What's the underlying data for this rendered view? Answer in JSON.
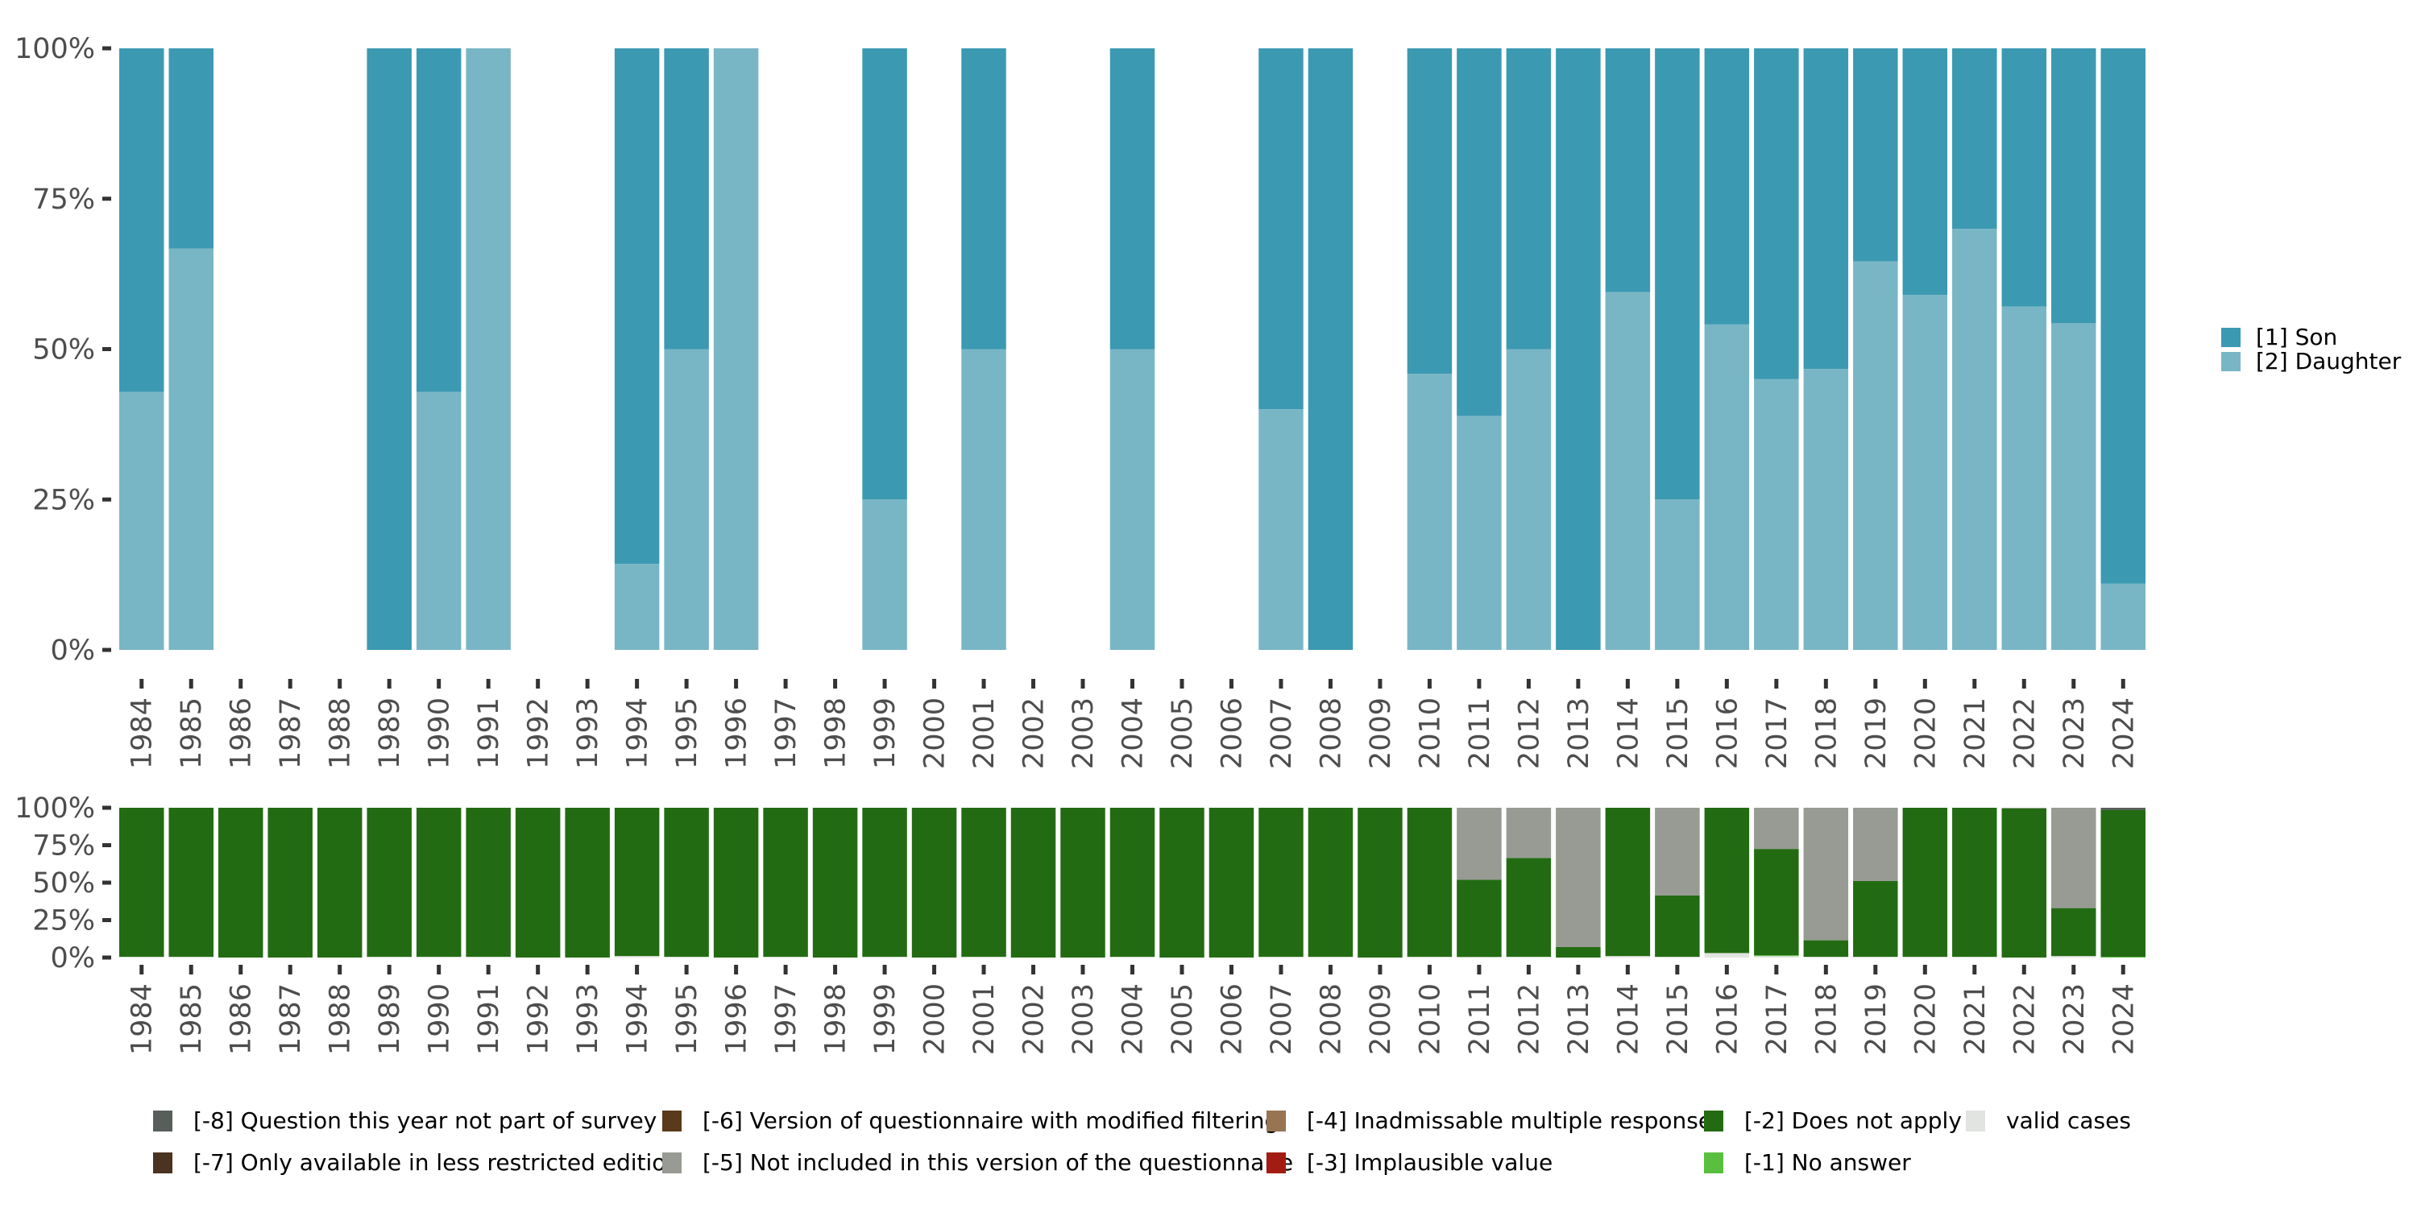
{
  "chart_data": [
    {
      "type": "bar",
      "stacked": true,
      "normalized": true,
      "title": "",
      "xlabel": "",
      "ylabel": "",
      "ylim": [
        0,
        100
      ],
      "yticks": [
        "0%",
        "25%",
        "50%",
        "75%",
        "100%"
      ],
      "categories": [
        "1984",
        "1985",
        "1986",
        "1987",
        "1988",
        "1989",
        "1990",
        "1991",
        "1992",
        "1993",
        "1994",
        "1995",
        "1996",
        "1997",
        "1998",
        "1999",
        "2000",
        "2001",
        "2002",
        "2003",
        "2004",
        "2005",
        "2006",
        "2007",
        "2008",
        "2009",
        "2010",
        "2011",
        "2012",
        "2013",
        "2014",
        "2015",
        "2016",
        "2017",
        "2018",
        "2019",
        "2020",
        "2021",
        "2022",
        "2023",
        "2024"
      ],
      "legend_position": "right",
      "series": [
        {
          "name": "[2] Daughter",
          "color": "#79b6c5",
          "values": [
            42.9,
            66.7,
            null,
            null,
            null,
            0,
            42.9,
            100,
            null,
            null,
            14.3,
            50,
            100,
            null,
            null,
            25,
            null,
            50,
            null,
            null,
            50,
            null,
            null,
            40,
            0,
            null,
            45.9,
            38.9,
            50,
            0,
            59.5,
            25,
            54.1,
            45,
            46.7,
            64.6,
            59,
            70,
            57.1,
            54.3,
            11
          ]
        },
        {
          "name": "[1] Son",
          "color": "#3c99b2",
          "values": [
            57.1,
            33.3,
            null,
            null,
            null,
            100,
            57.1,
            0,
            null,
            null,
            85.7,
            50,
            0,
            null,
            null,
            75,
            null,
            50,
            null,
            null,
            50,
            null,
            null,
            60,
            100,
            null,
            54.1,
            61.1,
            50,
            100,
            40.5,
            75,
            45.9,
            55,
            53.3,
            35.4,
            41,
            30,
            42.9,
            45.7,
            89
          ]
        }
      ]
    },
    {
      "type": "bar",
      "stacked": true,
      "normalized": true,
      "title": "",
      "xlabel": "",
      "ylabel": "",
      "ylim": [
        0,
        100
      ],
      "yticks": [
        "0%",
        "25%",
        "50%",
        "75%",
        "100%"
      ],
      "categories": [
        "1984",
        "1985",
        "1986",
        "1987",
        "1988",
        "1989",
        "1990",
        "1991",
        "1992",
        "1993",
        "1994",
        "1995",
        "1996",
        "1997",
        "1998",
        "1999",
        "2000",
        "2001",
        "2002",
        "2003",
        "2004",
        "2005",
        "2006",
        "2007",
        "2008",
        "2009",
        "2010",
        "2011",
        "2012",
        "2013",
        "2014",
        "2015",
        "2016",
        "2017",
        "2018",
        "2019",
        "2020",
        "2021",
        "2022",
        "2023",
        "2024"
      ],
      "legend_position": "bottom",
      "series": [
        {
          "name": "valid cases",
          "color": "#e1e4e0",
          "values": [
            0.5,
            0.5,
            0,
            0,
            0,
            0.5,
            0.5,
            0.5,
            0,
            0,
            1,
            0.5,
            0,
            0.5,
            0,
            0.5,
            0,
            0.5,
            0,
            0,
            0.5,
            0,
            0,
            0.5,
            0.5,
            0,
            0.5,
            0.4,
            0.5,
            0,
            1,
            0.5,
            3,
            1,
            0.5,
            0.5,
            0.5,
            0.5,
            0,
            1,
            0
          ]
        },
        {
          "name": "[-1] No answer",
          "color": "#5abf3f",
          "values": [
            0,
            0,
            0,
            0,
            0,
            0,
            0,
            0,
            0,
            0,
            0,
            0,
            0,
            0,
            0,
            0,
            0,
            0,
            0,
            0,
            0,
            0,
            0,
            0,
            0,
            0,
            0,
            0,
            0,
            0,
            0,
            0,
            0,
            0.5,
            0,
            0,
            0,
            0,
            0,
            0,
            0.5
          ]
        },
        {
          "name": "[-2] Does not apply",
          "color": "#236b12",
          "values": [
            99.5,
            99.5,
            100,
            100,
            100,
            99.5,
            99.5,
            99.5,
            100,
            100,
            99,
            99.5,
            100,
            99.5,
            100,
            99.5,
            100,
            99.5,
            100,
            100,
            99.5,
            100,
            100,
            99.5,
            99.5,
            100,
            99.5,
            51.5,
            66,
            7,
            99,
            41,
            97,
            71,
            11,
            50.6,
            99.5,
            99.5,
            99.5,
            32,
            97.9
          ]
        },
        {
          "name": "[-3] Implausible value",
          "color": "#a31c14",
          "values": [
            0,
            0,
            0,
            0,
            0,
            0,
            0,
            0,
            0,
            0,
            0,
            0,
            0,
            0,
            0,
            0,
            0,
            0,
            0,
            0,
            0,
            0,
            0,
            0,
            0,
            0,
            0,
            0,
            0,
            0,
            0,
            0,
            0,
            0,
            0,
            0,
            0,
            0,
            0,
            0,
            0
          ]
        },
        {
          "name": "[-4] Inadmissable multiple response",
          "color": "#977452",
          "values": [
            0,
            0,
            0,
            0,
            0,
            0,
            0,
            0,
            0,
            0,
            0,
            0,
            0,
            0,
            0,
            0,
            0,
            0,
            0,
            0,
            0,
            0,
            0,
            0,
            0,
            0,
            0,
            0,
            0,
            0,
            0,
            0,
            0,
            0,
            0,
            0,
            0,
            0,
            0,
            0,
            0
          ]
        },
        {
          "name": "[-5] Not included in this version of the questionnaire",
          "color": "#979b93",
          "values": [
            0,
            0,
            0,
            0,
            0,
            0,
            0,
            0,
            0,
            0,
            0,
            0,
            0,
            0,
            0,
            0,
            0,
            0,
            0,
            0,
            0,
            0,
            0,
            0,
            0,
            0,
            0,
            48.1,
            33.5,
            93,
            0,
            58.5,
            0,
            27.5,
            88.5,
            48.9,
            0,
            0,
            0.5,
            67,
            0
          ]
        },
        {
          "name": "[-6] Version of questionnaire with modified filtering",
          "color": "#5a3a1a",
          "values": [
            0,
            0,
            0,
            0,
            0,
            0,
            0,
            0,
            0,
            0,
            0,
            0,
            0,
            0,
            0,
            0,
            0,
            0,
            0,
            0,
            0,
            0,
            0,
            0,
            0,
            0,
            0,
            0,
            0,
            0,
            0,
            0,
            0,
            0,
            0,
            0,
            0,
            0,
            0,
            0,
            0
          ]
        },
        {
          "name": "[-7] Only available in less restricted edition",
          "color": "#4a3320",
          "values": [
            0,
            0,
            0,
            0,
            0,
            0,
            0,
            0,
            0,
            0,
            0,
            0,
            0,
            0,
            0,
            0,
            0,
            0,
            0,
            0,
            0,
            0,
            0,
            0,
            0,
            0,
            0,
            0,
            0,
            0,
            0,
            0,
            0,
            0,
            0,
            0,
            0,
            0,
            0,
            0,
            0
          ]
        },
        {
          "name": "[-8] Question this year not part of survey",
          "color": "#585f5a",
          "values": [
            0,
            0,
            0,
            0,
            0,
            0,
            0,
            0,
            0,
            0,
            0,
            0,
            0,
            0,
            0,
            0,
            0,
            0,
            0,
            0,
            0,
            0,
            0,
            0,
            0,
            0,
            0,
            0,
            0,
            0,
            0,
            0,
            0,
            0,
            0,
            0,
            0,
            0,
            0,
            0,
            1.6
          ]
        }
      ],
      "legend_order": [
        "[-8] Question this year not part of survey",
        "[-7] Only available in less restricted edition",
        "[-6] Version of questionnaire with modified filtering",
        "[-5] Not included in this version of the questionnaire",
        "[-4] Inadmissable multiple response",
        "[-3] Implausible value",
        "[-2] Does not apply",
        "[-1] No answer",
        "valid cases"
      ]
    }
  ]
}
